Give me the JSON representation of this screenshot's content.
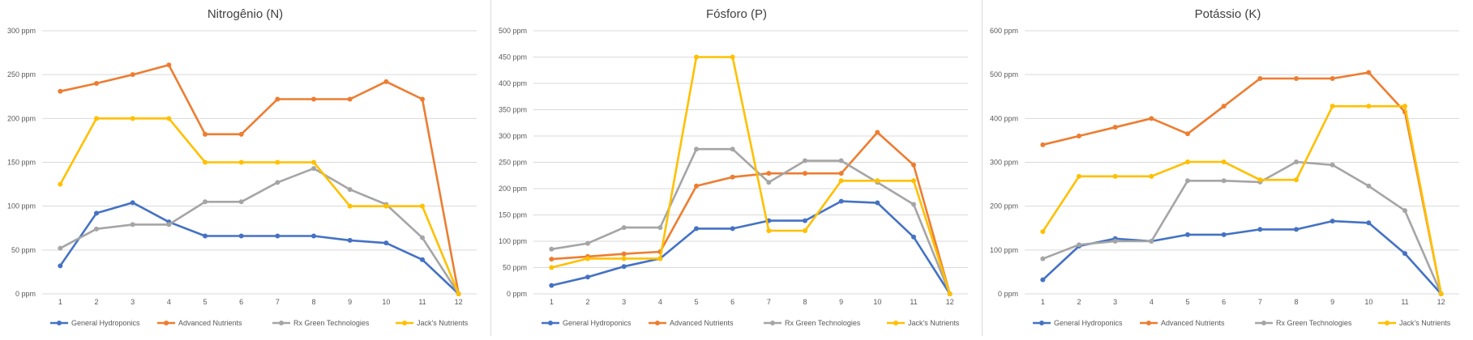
{
  "chart_data": [
    {
      "type": "line",
      "title": "Nitrogênio (N)",
      "ylim": [
        0,
        300
      ],
      "y_step": 50,
      "y_unit": "ppm",
      "grid": true,
      "legend_position": "bottom",
      "categories": [
        "1",
        "2",
        "3",
        "4",
        "5",
        "6",
        "7",
        "8",
        "9",
        "10",
        "11",
        "12"
      ],
      "series": [
        {
          "name": "General Hydroponics",
          "color": "#4472C4",
          "values": [
            32,
            92,
            104,
            82,
            66,
            66,
            66,
            66,
            61,
            58,
            39,
            0
          ]
        },
        {
          "name": "Advanced Nutrients",
          "color": "#ED7D31",
          "values": [
            231,
            240,
            250,
            261,
            182,
            182,
            222,
            222,
            222,
            242,
            222,
            0
          ]
        },
        {
          "name": "Rx Green Technologies",
          "color": "#A5A5A5",
          "values": [
            52,
            74,
            79,
            79,
            105,
            105,
            127,
            143,
            119,
            102,
            64,
            0
          ]
        },
        {
          "name": "Jack's Nutrients",
          "color": "#FFC000",
          "values": [
            125,
            200,
            200,
            200,
            150,
            150,
            150,
            150,
            100,
            100,
            100,
            0
          ]
        }
      ]
    },
    {
      "type": "line",
      "title": "Fósforo (P)",
      "ylim": [
        0,
        500
      ],
      "y_step": 50,
      "y_unit": "ppm",
      "grid": true,
      "legend_position": "bottom",
      "categories": [
        "1",
        "2",
        "3",
        "4",
        "5",
        "6",
        "7",
        "8",
        "9",
        "10",
        "11",
        "12"
      ],
      "series": [
        {
          "name": "General Hydroponics",
          "color": "#4472C4",
          "values": [
            16,
            32,
            52,
            67,
            124,
            124,
            139,
            139,
            176,
            173,
            108,
            0
          ]
        },
        {
          "name": "Advanced Nutrients",
          "color": "#ED7D31",
          "values": [
            66,
            71,
            76,
            80,
            205,
            222,
            229,
            229,
            229,
            307,
            245,
            0
          ]
        },
        {
          "name": "Rx Green Technologies",
          "color": "#A5A5A5",
          "values": [
            85,
            96,
            126,
            126,
            275,
            275,
            212,
            253,
            253,
            212,
            170,
            0
          ]
        },
        {
          "name": "Jack's Nutrients",
          "color": "#FFC000",
          "values": [
            50,
            67,
            67,
            67,
            450,
            450,
            120,
            120,
            215,
            215,
            215,
            0
          ]
        }
      ]
    },
    {
      "type": "line",
      "title": "Potássio (K)",
      "ylim": [
        0,
        600
      ],
      "y_step": 100,
      "y_unit": "ppm",
      "grid": true,
      "legend_position": "bottom",
      "categories": [
        "1",
        "2",
        "3",
        "4",
        "5",
        "6",
        "7",
        "8",
        "9",
        "10",
        "11",
        "12"
      ],
      "series": [
        {
          "name": "General Hydroponics",
          "color": "#4472C4",
          "values": [
            32,
            109,
            126,
            120,
            135,
            135,
            147,
            147,
            166,
            162,
            92,
            0
          ]
        },
        {
          "name": "Advanced Nutrients",
          "color": "#ED7D31",
          "values": [
            340,
            360,
            380,
            400,
            365,
            428,
            491,
            491,
            491,
            505,
            415,
            0
          ]
        },
        {
          "name": "Rx Green Technologies",
          "color": "#A5A5A5",
          "values": [
            80,
            112,
            120,
            120,
            258,
            258,
            255,
            301,
            294,
            246,
            190,
            0
          ]
        },
        {
          "name": "Jack's Nutrients",
          "color": "#FFC000",
          "values": [
            142,
            268,
            268,
            268,
            301,
            301,
            260,
            260,
            428,
            428,
            428,
            0
          ]
        }
      ]
    }
  ]
}
